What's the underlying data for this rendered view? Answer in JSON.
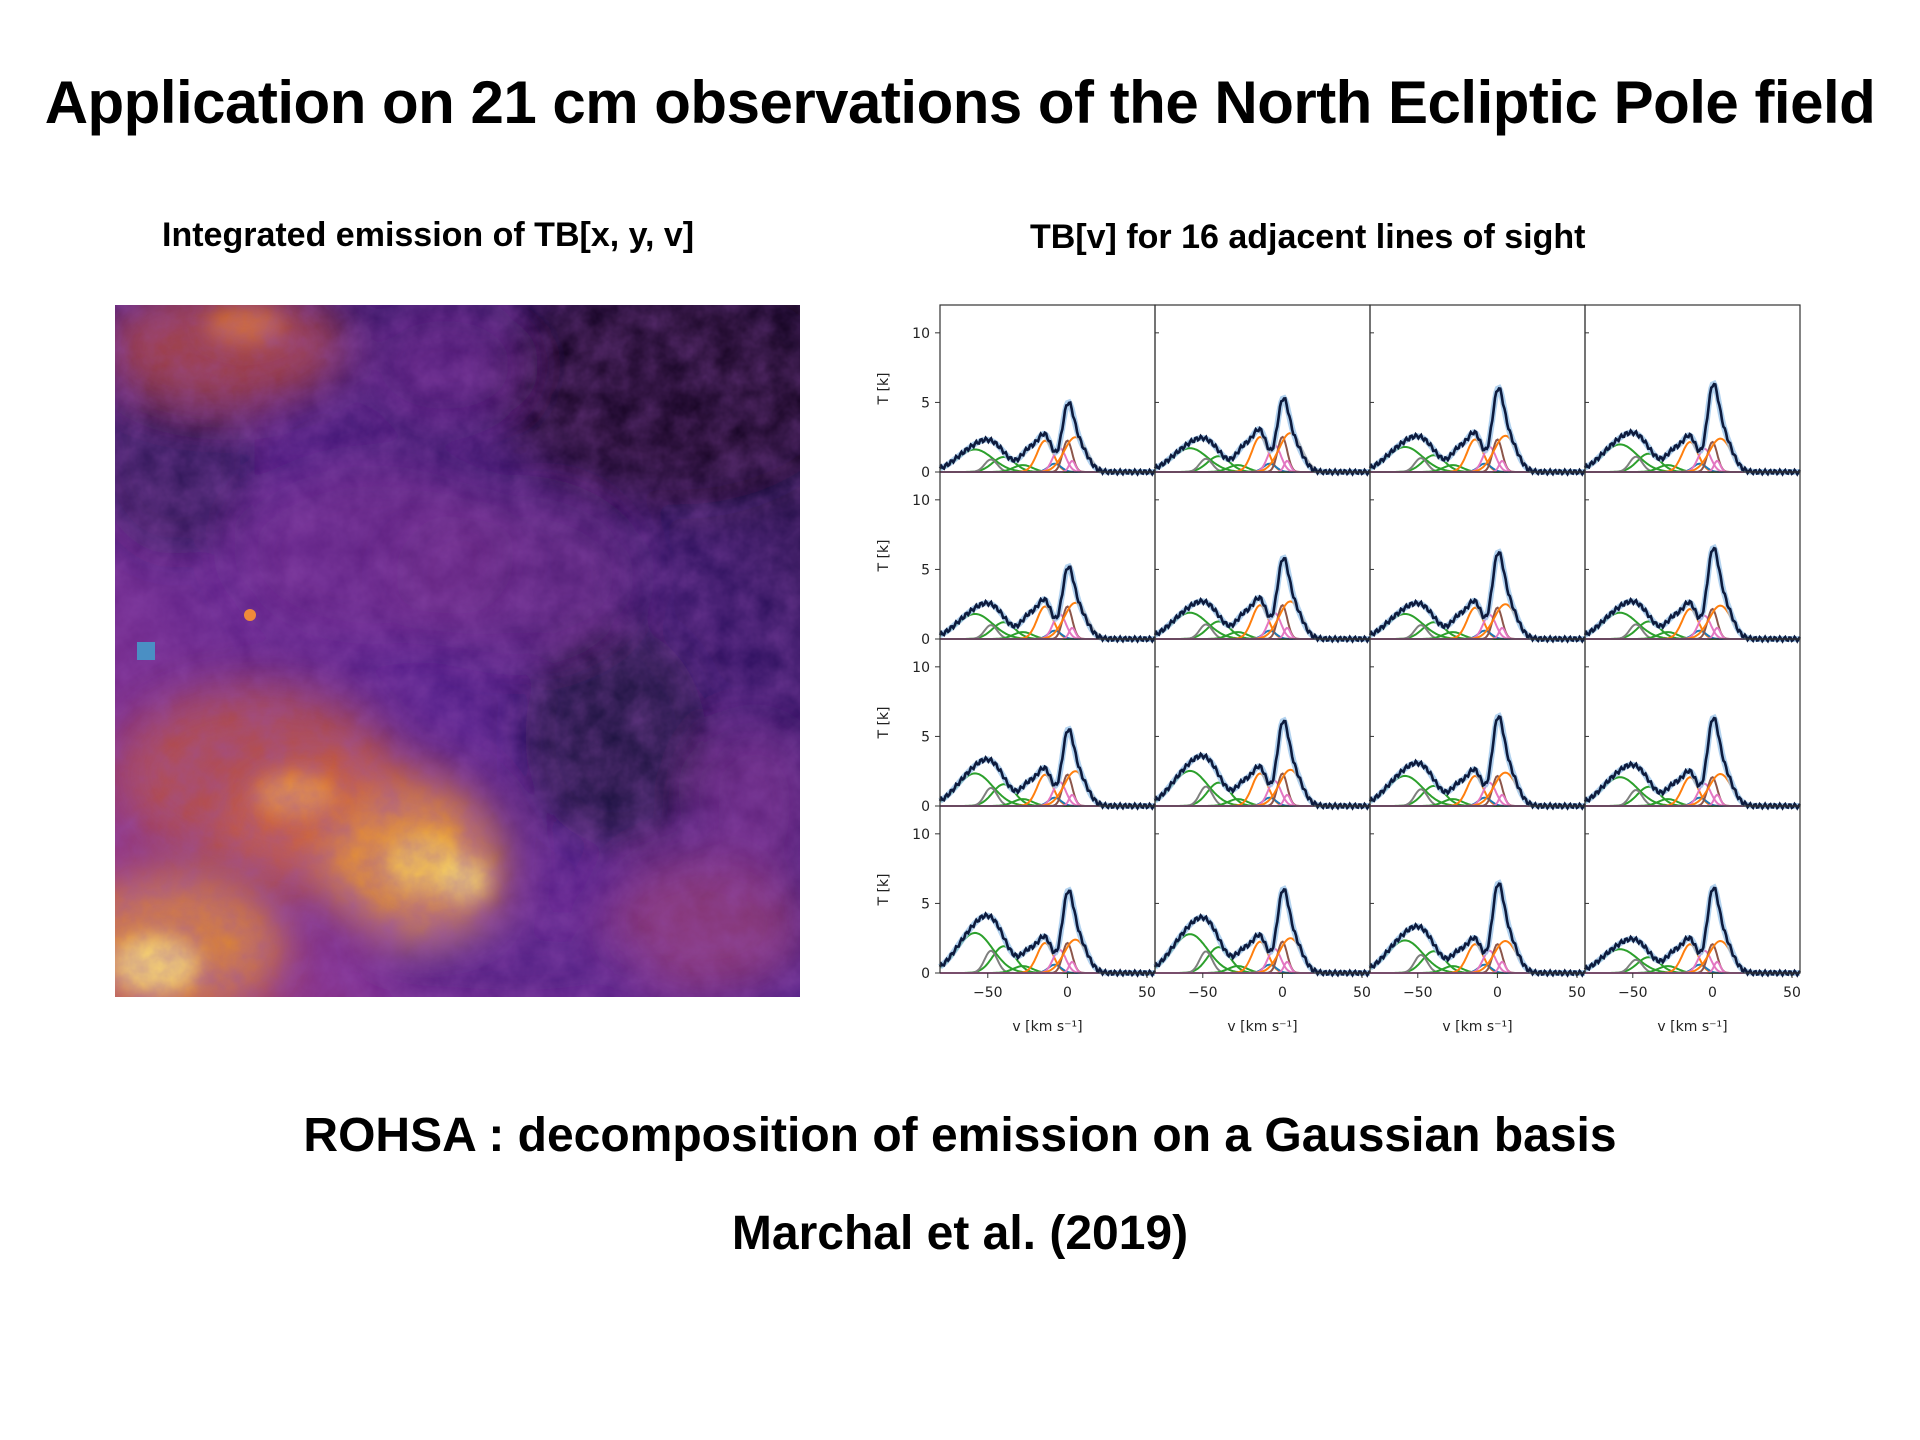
{
  "slide": {
    "title": "Application on 21 cm observations of the North Ecliptic Pole field",
    "left_heading": "Integrated emission of TB[x, y, v]",
    "right_heading": "TB[v] for 16 adjacent lines of sight",
    "caption": "ROHSA : decomposition of emission on a Gaussian basis",
    "reference": "Marchal et al. (2019)"
  },
  "chart_data": [
    {
      "type": "heatmap",
      "title": "Integrated emission of TB[x, y, v]",
      "colormap": "inferno",
      "marker_color": "#4a8fc4",
      "description_values": "dark purple low emission top-right, bright orange-yellow high emission bottom-left"
    },
    {
      "type": "line",
      "title": "TB[v] for 16 adjacent lines of sight",
      "grid": "4x4",
      "xlabel": "v [km s⁻¹]",
      "ylabel": "T [k]",
      "xlim": [
        -80,
        55
      ],
      "ylim": [
        0,
        12
      ],
      "xticks": [
        -50,
        0,
        50
      ],
      "yticks": [
        0,
        5,
        10
      ],
      "xtick_labels": [
        "−50",
        "0",
        "50"
      ],
      "ytick_labels": [
        "0",
        "5",
        "10"
      ],
      "series_colors": {
        "total": "#0d1b3e",
        "fit": "#9ec5ea",
        "c1": "#2ca02c",
        "c2": "#ff7f0e",
        "c3": "#e377c2",
        "c4": "#8c564b",
        "c5": "#7f7f7f",
        "c6": "#1f77b4"
      },
      "panels": [
        {
          "peak": 4.8,
          "mid": 2.5,
          "low": 1.8
        },
        {
          "peak": 5.1,
          "mid": 2.8,
          "low": 1.9
        },
        {
          "peak": 5.8,
          "mid": 2.6,
          "low": 2.0
        },
        {
          "peak": 6.1,
          "mid": 2.4,
          "low": 2.2
        },
        {
          "peak": 5.0,
          "mid": 2.6,
          "low": 2.0
        },
        {
          "peak": 5.6,
          "mid": 2.7,
          "low": 2.1
        },
        {
          "peak": 6.0,
          "mid": 2.5,
          "low": 2.0
        },
        {
          "peak": 6.3,
          "mid": 2.4,
          "low": 2.1
        },
        {
          "peak": 5.3,
          "mid": 2.5,
          "low": 2.6
        },
        {
          "peak": 5.9,
          "mid": 2.6,
          "low": 2.8
        },
        {
          "peak": 6.2,
          "mid": 2.4,
          "low": 2.4
        },
        {
          "peak": 6.1,
          "mid": 2.3,
          "low": 2.3
        },
        {
          "peak": 5.7,
          "mid": 2.4,
          "low": 3.2
        },
        {
          "peak": 5.8,
          "mid": 2.5,
          "low": 3.1
        },
        {
          "peak": 6.2,
          "mid": 2.3,
          "low": 2.6
        },
        {
          "peak": 5.9,
          "mid": 2.3,
          "low": 1.9
        }
      ]
    }
  ]
}
